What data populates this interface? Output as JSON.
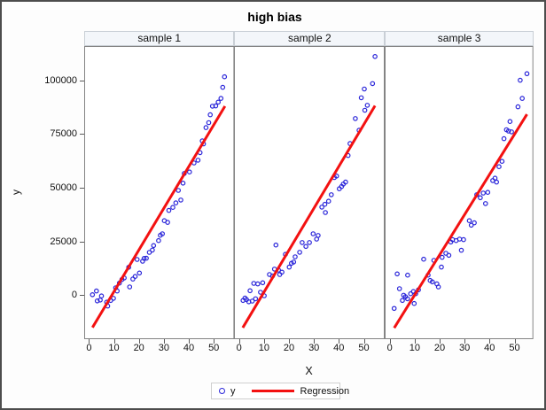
{
  "chart_data": {
    "type": "scatter",
    "title": "high bias",
    "xlabel": "X",
    "ylabel": "y",
    "xticks": [
      0,
      10,
      20,
      30,
      40,
      50
    ],
    "yticks": [
      0,
      25000,
      50000,
      75000,
      100000
    ],
    "xlim": [
      -1.9,
      57.5
    ],
    "ylim": [
      -20600,
      116000
    ],
    "grid": false,
    "legend_position": "bottom",
    "legend": {
      "marker_label": "y",
      "line_label": "Regression"
    },
    "colors": {
      "marker": "#2a25d9",
      "regression_line": "#f31111",
      "strip_fill": "#f3f6fa",
      "strip_border": "#c9cfd6",
      "panel_border": "#848484",
      "tick": "#5a5a5a",
      "frame": "#4d4d4d"
    },
    "panels": [
      {
        "label": "sample 1",
        "points": [
          [
            1.4,
            100
          ],
          [
            3,
            1800
          ],
          [
            3.3,
            -2800
          ],
          [
            4.5,
            -2400
          ],
          [
            5,
            -500
          ],
          [
            7.1,
            -3400
          ],
          [
            7.5,
            -5200
          ],
          [
            8.7,
            -2600
          ],
          [
            9.8,
            -1600
          ],
          [
            10.7,
            3300
          ],
          [
            11.3,
            1800
          ],
          [
            12.2,
            5500
          ],
          [
            13.2,
            7200
          ],
          [
            14.1,
            7900
          ],
          [
            15.9,
            12900
          ],
          [
            16.3,
            3700
          ],
          [
            17.6,
            7400
          ],
          [
            18.5,
            8600
          ],
          [
            19.3,
            16500
          ],
          [
            20.2,
            10200
          ],
          [
            21.5,
            15700
          ],
          [
            22.1,
            17000
          ],
          [
            23,
            17100
          ],
          [
            24.2,
            19800
          ],
          [
            25.4,
            20900
          ],
          [
            25.9,
            23000
          ],
          [
            27.9,
            25300
          ],
          [
            28.6,
            27800
          ],
          [
            29.4,
            28500
          ],
          [
            30.2,
            34600
          ],
          [
            31.5,
            33800
          ],
          [
            32,
            39400
          ],
          [
            33.6,
            40800
          ],
          [
            34.8,
            42900
          ],
          [
            35.8,
            48700
          ],
          [
            36.8,
            44200
          ],
          [
            37.7,
            52100
          ],
          [
            38.2,
            56600
          ],
          [
            40.3,
            57300
          ],
          [
            42.1,
            61500
          ],
          [
            43.7,
            62800
          ],
          [
            44.5,
            66300
          ],
          [
            45.4,
            71800
          ],
          [
            45.9,
            70400
          ],
          [
            46.9,
            78000
          ],
          [
            48,
            80300
          ],
          [
            48.6,
            84000
          ],
          [
            49.5,
            88000
          ],
          [
            50.8,
            88100
          ],
          [
            51.8,
            89900
          ],
          [
            52.9,
            91600
          ],
          [
            53.6,
            96800
          ],
          [
            54.3,
            101700
          ]
        ],
        "regression": {
          "x1": 1.4,
          "y1": -15200,
          "x2": 54.5,
          "y2": 88000
        }
      },
      {
        "label": "sample 2",
        "points": [
          [
            1.7,
            -2600
          ],
          [
            2.5,
            -1500
          ],
          [
            3.1,
            -2200
          ],
          [
            4,
            -3200
          ],
          [
            4.5,
            1950
          ],
          [
            5.4,
            -2900
          ],
          [
            6,
            5350
          ],
          [
            6.7,
            -1800
          ],
          [
            7.6,
            5100
          ],
          [
            8.7,
            1250
          ],
          [
            9.6,
            5650
          ],
          [
            10.2,
            -400
          ],
          [
            12.3,
            9500
          ],
          [
            13.5,
            8800
          ],
          [
            14.3,
            12000
          ],
          [
            14.9,
            23250
          ],
          [
            15.9,
            11550
          ],
          [
            16.4,
            9500
          ],
          [
            17.3,
            10600
          ],
          [
            18.7,
            18900
          ],
          [
            20.2,
            12950
          ],
          [
            21.1,
            14750
          ],
          [
            22,
            15300
          ],
          [
            22.6,
            17750
          ],
          [
            24.4,
            19850
          ],
          [
            25.4,
            24400
          ],
          [
            26.9,
            22600
          ],
          [
            28.3,
            24400
          ],
          [
            29.8,
            28500
          ],
          [
            31.2,
            26000
          ],
          [
            31.8,
            27700
          ],
          [
            33.3,
            40900
          ],
          [
            34.5,
            42250
          ],
          [
            34.7,
            38400
          ],
          [
            36,
            43700
          ],
          [
            37.1,
            46700
          ],
          [
            38.3,
            54700
          ],
          [
            39.2,
            55400
          ],
          [
            40.3,
            49450
          ],
          [
            41.2,
            50550
          ],
          [
            41.9,
            51650
          ],
          [
            42.8,
            52600
          ],
          [
            43.8,
            65000
          ],
          [
            44.6,
            70550
          ],
          [
            46.7,
            82200
          ],
          [
            48.2,
            76750
          ],
          [
            49.1,
            91900
          ],
          [
            50.3,
            96000
          ],
          [
            50.5,
            86100
          ],
          [
            51.5,
            88400
          ],
          [
            53.6,
            98500
          ],
          [
            54.6,
            111150
          ]
        ],
        "regression": {
          "x1": 1.6,
          "y1": -15300,
          "x2": 54.6,
          "y2": 88200
        }
      },
      {
        "label": "sample 3",
        "points": [
          [
            1.9,
            -6300
          ],
          [
            3.1,
            9800
          ],
          [
            4,
            2900
          ],
          [
            5.2,
            -2600
          ],
          [
            5.7,
            -150
          ],
          [
            6.4,
            -850
          ],
          [
            7.2,
            -1800
          ],
          [
            7.3,
            9200
          ],
          [
            8.5,
            550
          ],
          [
            9.6,
            1550
          ],
          [
            9.9,
            -4000
          ],
          [
            10.5,
            550
          ],
          [
            11.6,
            2350
          ],
          [
            13.7,
            16650
          ],
          [
            15.5,
            9200
          ],
          [
            16.3,
            6750
          ],
          [
            17.2,
            6050
          ],
          [
            17.8,
            16100
          ],
          [
            19,
            5100
          ],
          [
            19.6,
            3700
          ],
          [
            20.8,
            12950
          ],
          [
            21.1,
            17500
          ],
          [
            22.6,
            19400
          ],
          [
            23.8,
            18450
          ],
          [
            24.6,
            24650
          ],
          [
            25.3,
            25750
          ],
          [
            26.7,
            25300
          ],
          [
            28.1,
            26000
          ],
          [
            28.8,
            20800
          ],
          [
            29.7,
            25750
          ],
          [
            32,
            34600
          ],
          [
            32.8,
            32500
          ],
          [
            34,
            33600
          ],
          [
            35,
            46700
          ],
          [
            36.4,
            45300
          ],
          [
            37.6,
            47500
          ],
          [
            38.5,
            42550
          ],
          [
            39.4,
            47800
          ],
          [
            41.4,
            53300
          ],
          [
            42.3,
            54400
          ],
          [
            42.9,
            52600
          ],
          [
            43.9,
            59800
          ],
          [
            45.1,
            62250
          ],
          [
            45.9,
            72850
          ],
          [
            46.9,
            77000
          ],
          [
            47.7,
            76400
          ],
          [
            48.3,
            80850
          ],
          [
            48.9,
            76000
          ],
          [
            51.5,
            87700
          ],
          [
            52.4,
            100100
          ],
          [
            53.2,
            91600
          ],
          [
            55.1,
            103150
          ]
        ],
        "regression": {
          "x1": 1.9,
          "y1": -15400,
          "x2": 55.1,
          "y2": 84200
        }
      }
    ]
  }
}
